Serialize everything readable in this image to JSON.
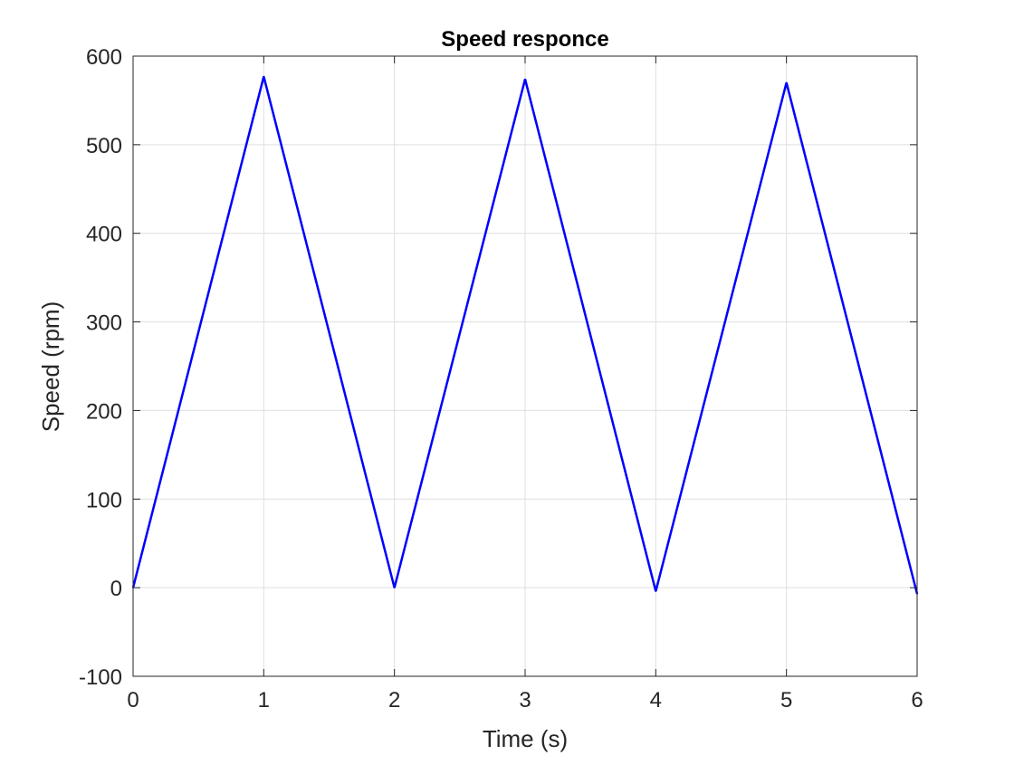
{
  "chart_data": {
    "type": "line",
    "title": "Speed responce",
    "xlabel": "Time (s)",
    "ylabel": "Speed (rpm)",
    "xlim": [
      0,
      6
    ],
    "ylim": [
      -100,
      600
    ],
    "xticks": [
      0,
      1,
      2,
      3,
      4,
      5,
      6
    ],
    "yticks": [
      -100,
      0,
      100,
      200,
      300,
      400,
      500,
      600
    ],
    "grid": true,
    "series": [
      {
        "color": "#0000ff",
        "x": [
          0,
          1,
          2,
          3,
          4,
          5,
          6
        ],
        "y": [
          0,
          577,
          0,
          574,
          -4,
          570,
          -7
        ]
      }
    ]
  }
}
